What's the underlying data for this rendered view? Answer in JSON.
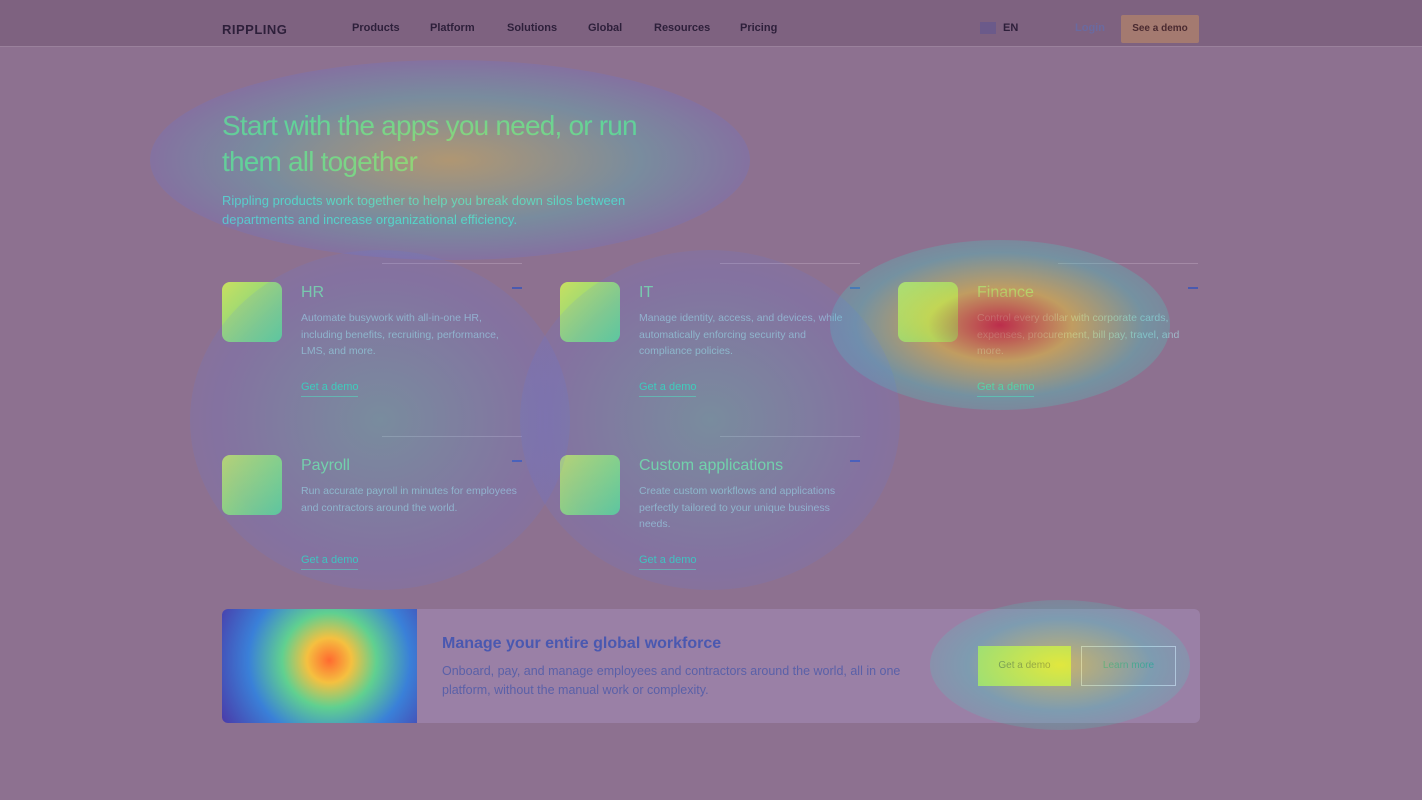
{
  "nav": {
    "logo": "RIPPLING",
    "links": [
      "Products",
      "Platform",
      "Solutions",
      "Global",
      "Resources",
      "Pricing"
    ],
    "language": "EN",
    "login": "Login",
    "cta": "See a demo"
  },
  "hero": {
    "title": "Start with the apps you need, or run them all together",
    "subtitle": "Rippling products work together to help you break down silos between departments and increase organizational efficiency."
  },
  "cards": [
    {
      "title": "HR",
      "description": "Automate busywork with all-in-one HR, including benefits, recruiting, performance, LMS, and more.",
      "cta": "Get a demo"
    },
    {
      "title": "IT",
      "description": "Manage identity, access, and devices, while automatically enforcing security and compliance policies.",
      "cta": "Get a demo"
    },
    {
      "title": "Finance",
      "description": "Control every dollar with corporate cards, expenses, procurement, bill pay, travel, and more.",
      "cta": "Get a demo"
    },
    {
      "title": "Payroll",
      "description": "Run accurate payroll in minutes for employees and contractors around the world.",
      "cta": "Get a demo"
    },
    {
      "title": "Custom applications",
      "description": "Create custom workflows and applications perfectly tailored to your unique business needs.",
      "cta": "Get a demo"
    }
  ],
  "banner": {
    "title": "Manage your entire global workforce",
    "text": "Onboard, pay, and manage employees and contractors around the world, all in one platform, without the manual work or complexity.",
    "primary_cta": "Get a demo",
    "secondary_cta": "Learn more"
  }
}
